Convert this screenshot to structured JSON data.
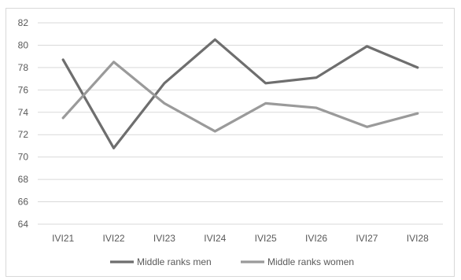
{
  "chart_data": {
    "type": "line",
    "categories": [
      "IVI21",
      "IVI22",
      "IVI23",
      "IVI24",
      "IVI25",
      "IVI26",
      "IVI27",
      "IVI28"
    ],
    "series": [
      {
        "name": "Middle ranks men",
        "values": [
          78.7,
          70.8,
          76.6,
          80.5,
          76.6,
          77.1,
          79.9,
          78.0
        ],
        "color": "#6e6e6e"
      },
      {
        "name": "Middle ranks women",
        "values": [
          73.5,
          78.5,
          74.8,
          72.3,
          74.8,
          74.4,
          72.7,
          73.9
        ],
        "color": "#9a9a9a"
      }
    ],
    "title": "",
    "xlabel": "",
    "ylabel": "",
    "ylim": [
      64,
      82
    ],
    "yticks": [
      64,
      66,
      68,
      70,
      72,
      74,
      76,
      78,
      80,
      82
    ],
    "grid": true,
    "legend_position": "bottom"
  }
}
